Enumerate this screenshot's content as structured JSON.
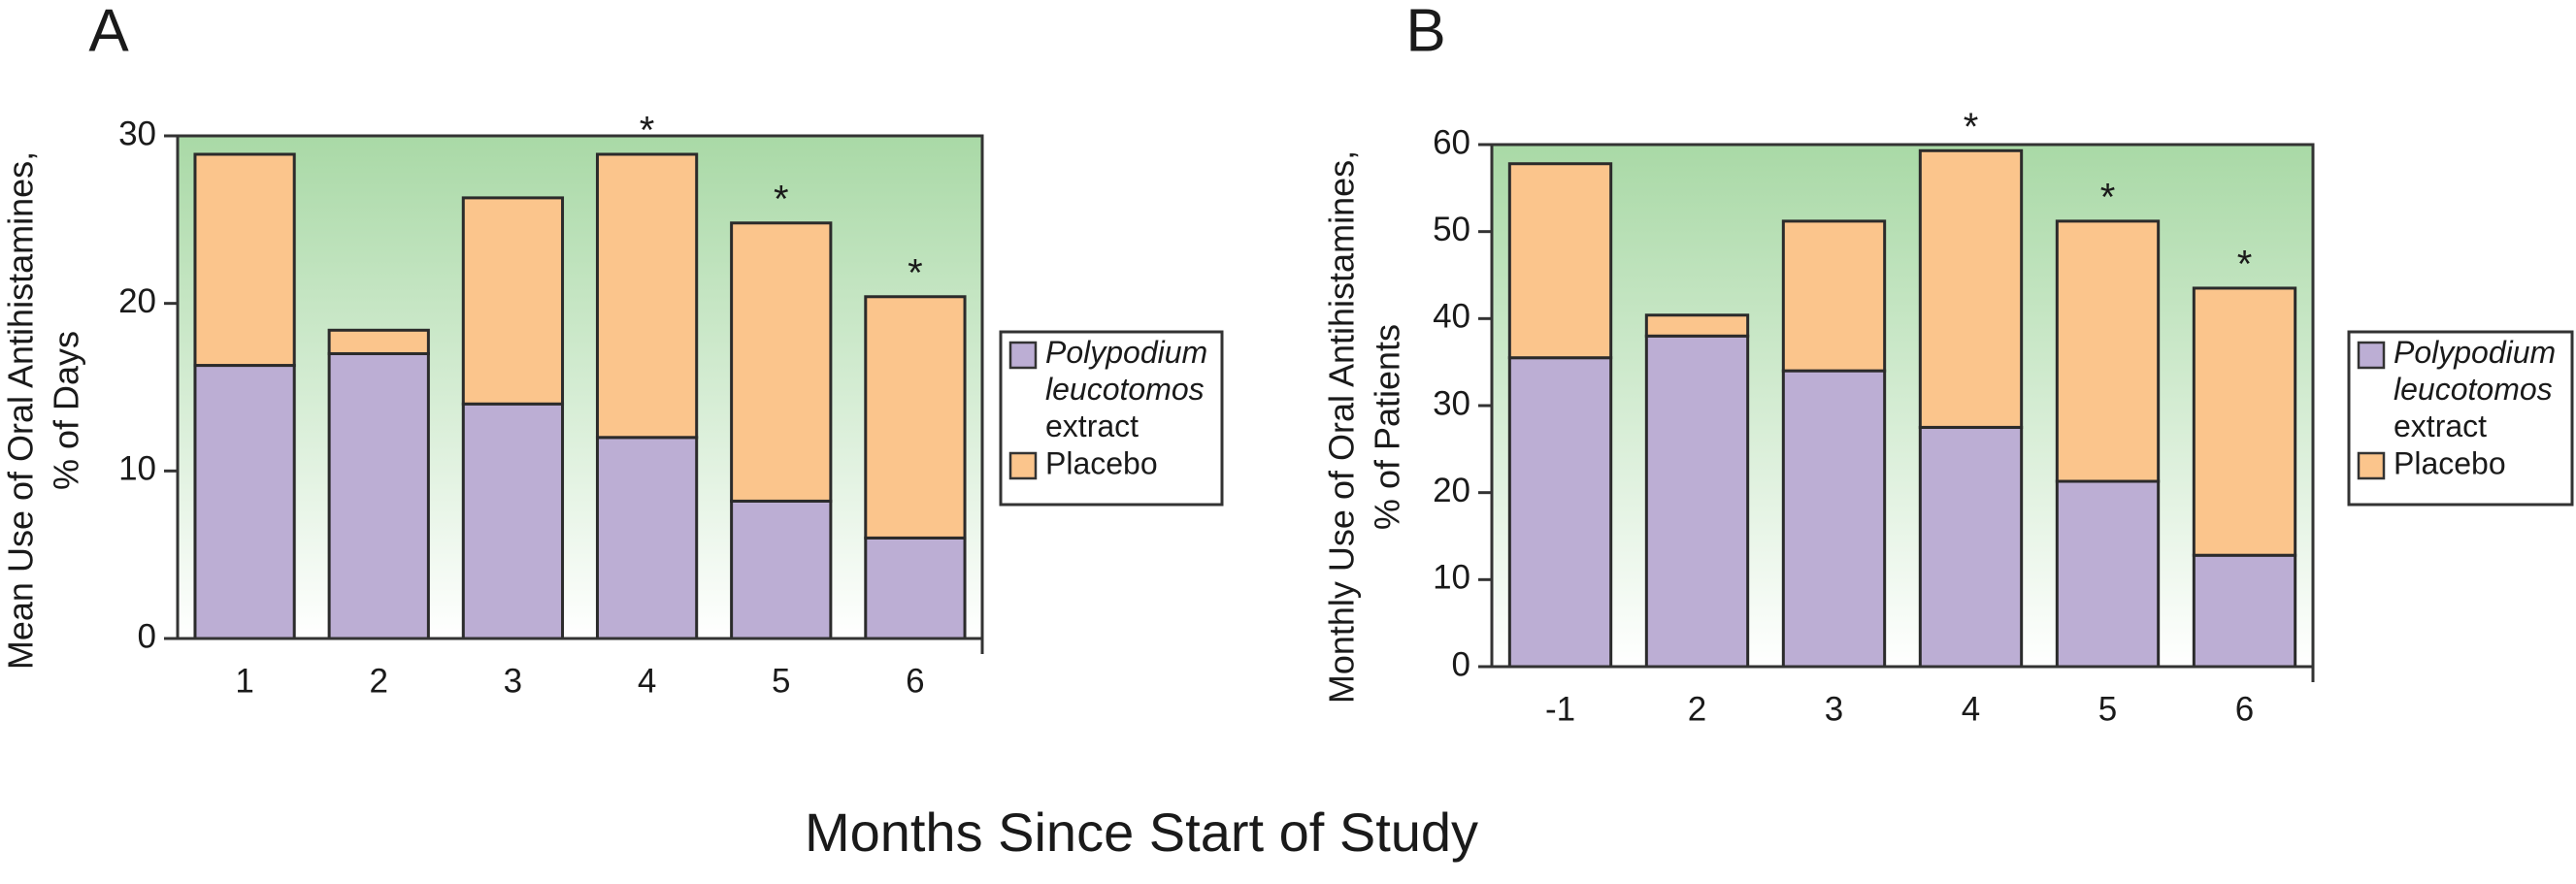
{
  "figure_title": "Months Since Start of Study",
  "chart_data": [
    {
      "type": "bar",
      "stacked": true,
      "panel_label": "A",
      "y_label": [
        "Mean Use of Oral Antihistamines,",
        "% of Days"
      ],
      "categories": [
        "1",
        "2",
        "3",
        "4",
        "5",
        "6"
      ],
      "series": [
        {
          "name": "Polypodium leucotomos extract",
          "color": "#bcaed4",
          "values": [
            16.3,
            17,
            14,
            12,
            8.2,
            6
          ]
        },
        {
          "name": "Placebo",
          "color": "#fbc58c",
          "values": [
            12.6,
            1.4,
            12.3,
            16.9,
            16.6,
            14.4
          ]
        }
      ],
      "significance": [
        null,
        null,
        null,
        "*",
        "*",
        "*"
      ],
      "ylim": [
        0,
        30
      ],
      "yticks": [
        0,
        10,
        20,
        30
      ]
    },
    {
      "type": "bar",
      "stacked": true,
      "panel_label": "B",
      "y_label": [
        "Monthly Use of Oral Antihistamines,",
        "% of Patients"
      ],
      "categories": [
        "-1",
        "2",
        "3",
        "4",
        "5",
        "6"
      ],
      "series": [
        {
          "name": "Polypodium leucotomos extract",
          "color": "#bcaed4",
          "values": [
            35.5,
            38,
            34,
            27.5,
            21.3,
            12.8
          ]
        },
        {
          "name": "Placebo",
          "color": "#fbc58c",
          "values": [
            22.3,
            2.4,
            17.2,
            31.8,
            29.9,
            30.7
          ]
        }
      ],
      "significance": [
        null,
        null,
        null,
        "*",
        "*",
        "*"
      ],
      "ylim": [
        0,
        60
      ],
      "yticks": [
        0,
        10,
        20,
        30,
        40,
        50,
        60
      ]
    }
  ]
}
